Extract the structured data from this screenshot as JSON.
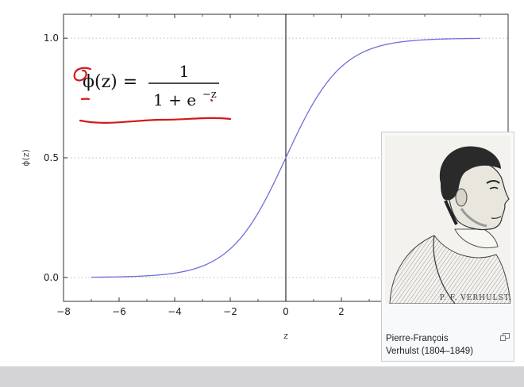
{
  "chart_data": {
    "type": "line",
    "title": "",
    "xlabel": "z",
    "ylabel": "ϕ(z)",
    "xlim": [
      -8,
      8
    ],
    "ylim": [
      -0.1,
      1.1
    ],
    "x_ticks": [
      "−8",
      "−6",
      "−4",
      "−2",
      "0",
      "2"
    ],
    "y_ticks": [
      "0.0",
      "0.5",
      "1.0"
    ],
    "grid": "horizontal dotted at 0.0, 0.5, 1.0",
    "vertical_line_at": 0,
    "series": [
      {
        "color": "#6f6fdd",
        "function": "1/(1+exp(-z))",
        "x": [
          -7,
          -6,
          -5,
          -4,
          -3,
          -2,
          -1,
          0,
          1,
          2,
          3,
          4,
          5,
          6,
          7
        ],
        "values": [
          0.001,
          0.002,
          0.007,
          0.018,
          0.047,
          0.119,
          0.269,
          0.5,
          0.731,
          0.881,
          0.953,
          0.982,
          0.993,
          0.998,
          0.999
        ]
      }
    ]
  },
  "formula": {
    "lhs": "ϕ(z) =",
    "numerator": "1",
    "denominator_base": "1 + e",
    "denominator_exp": "−z"
  },
  "annotations": {
    "sigma_symbol": "σ",
    "ink_color": "#d11a1a"
  },
  "portrait": {
    "inscription": "P. F. VERHULST.",
    "caption_line1": "Pierre-François",
    "caption_line2": "Verhulst (1804–1849)",
    "enlarge_icon": "enlarge-icon"
  },
  "colors": {
    "curve": "#6f6fdd",
    "bottom_bar": "#d4d4d6"
  }
}
